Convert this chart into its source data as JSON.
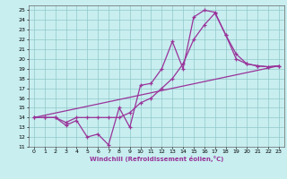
{
  "xlabel": "Windchill (Refroidissement éolien,°C)",
  "bg_color": "#c8eef0",
  "grid_color": "#90c8c8",
  "line_color": "#993399",
  "xlim": [
    -0.5,
    23.5
  ],
  "ylim": [
    11,
    25.5
  ],
  "xticks": [
    0,
    1,
    2,
    3,
    4,
    5,
    6,
    7,
    8,
    9,
    10,
    11,
    12,
    13,
    14,
    15,
    16,
    17,
    18,
    19,
    20,
    21,
    22,
    23
  ],
  "yticks": [
    11,
    12,
    13,
    14,
    15,
    16,
    17,
    18,
    19,
    20,
    21,
    22,
    23,
    24,
    25
  ],
  "curve1_x": [
    0,
    1,
    2,
    3,
    4,
    5,
    6,
    7,
    8,
    9,
    10,
    11,
    12,
    13,
    14,
    15,
    16,
    17,
    18,
    19,
    20,
    21,
    22,
    23
  ],
  "curve1_y": [
    14,
    14,
    14,
    13.2,
    13.7,
    12.0,
    12.3,
    11.2,
    15.0,
    13.0,
    17.3,
    17.5,
    19.0,
    21.8,
    19.0,
    24.3,
    25.0,
    24.8,
    22.5,
    20.0,
    19.5,
    19.3,
    19.2,
    19.3
  ],
  "curve2_x": [
    0,
    1,
    2,
    3,
    4,
    5,
    6,
    7,
    8,
    9,
    10,
    11,
    12,
    13,
    14,
    15,
    16,
    17,
    18,
    19,
    20,
    21,
    22,
    23
  ],
  "curve2_y": [
    14,
    14,
    14,
    13.5,
    14,
    14,
    14,
    14,
    14,
    14.5,
    15.5,
    16.0,
    17.0,
    18.0,
    19.5,
    22.0,
    23.5,
    24.7,
    22.5,
    20.5,
    19.5,
    19.3,
    19.2,
    19.3
  ],
  "curve3_x": [
    0,
    23
  ],
  "curve3_y": [
    14.0,
    19.3
  ]
}
